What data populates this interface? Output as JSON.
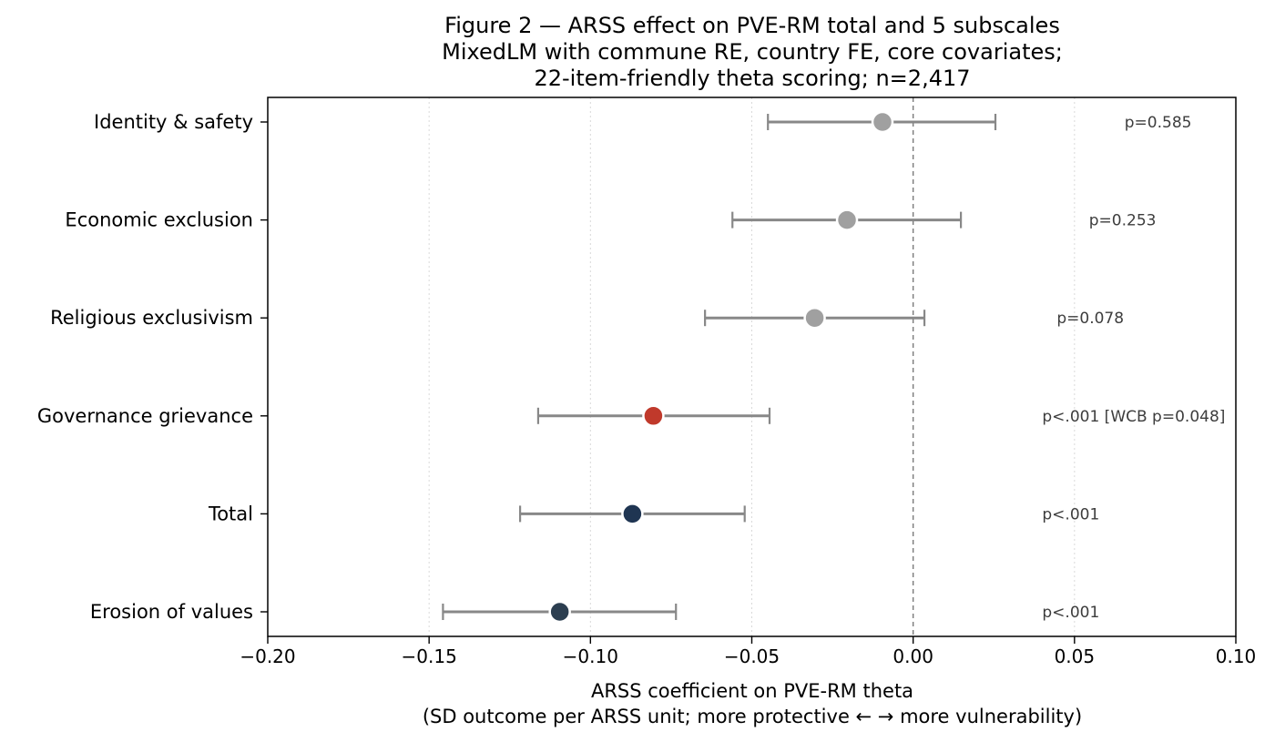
{
  "chart_data": {
    "type": "forest",
    "title_lines": [
      "Figure 2 — ARSS effect on PVE-RM total and 5 subscales",
      "MixedLM with commune RE, country FE, core covariates;",
      "22-item-friendly theta scoring; n=2,417"
    ],
    "xlabel_lines": [
      "ARSS coefficient on PVE-RM theta",
      "(SD outcome per ARSS unit;  more protective ←       → more vulnerability)"
    ],
    "xlim": [
      -0.2,
      0.1
    ],
    "xticks": [
      -0.2,
      -0.15,
      -0.1,
      -0.05,
      0.0,
      0.05,
      0.1
    ],
    "xtick_labels": [
      "−0.20",
      "−0.15",
      "−0.10",
      "−0.05",
      "0.00",
      "0.05",
      "0.10"
    ],
    "grid": "vertical dotted at ticks",
    "reference_line": 0.0,
    "rows": [
      {
        "label": "Identity & safety",
        "estimate": -0.0095,
        "ci_low": -0.045,
        "ci_high": 0.0255,
        "p_text": "p=0.585",
        "color": "#a0a0a0"
      },
      {
        "label": "Economic exclusion",
        "estimate": -0.0205,
        "ci_low": -0.056,
        "ci_high": 0.0148,
        "p_text": "p=0.253",
        "color": "#a0a0a0"
      },
      {
        "label": "Religious exclusivism",
        "estimate": -0.0305,
        "ci_low": -0.0645,
        "ci_high": 0.0035,
        "p_text": "p=0.078",
        "color": "#a0a0a0"
      },
      {
        "label": "Governance grievance",
        "estimate": -0.0805,
        "ci_low": -0.1162,
        "ci_high": -0.0445,
        "p_text": "p<.001  [WCB p=0.048]",
        "color": "#c0392b"
      },
      {
        "label": "Total",
        "estimate": -0.087,
        "ci_low": -0.1218,
        "ci_high": -0.0522,
        "p_text": "p<.001",
        "color": "#1f3552"
      },
      {
        "label": "Erosion of values",
        "estimate": -0.1095,
        "ci_low": -0.1457,
        "ci_high": -0.0735,
        "p_text": "p<.001",
        "color": "#2c3e50"
      }
    ],
    "ci_color": "#888888"
  }
}
